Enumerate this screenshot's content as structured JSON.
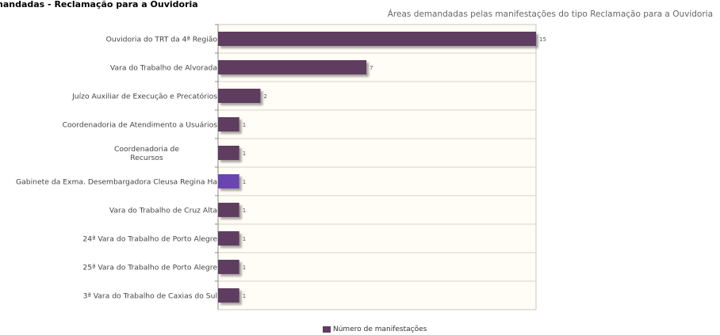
{
  "page": {
    "heading": "nandadas - Reclamação para a Ouvidoria"
  },
  "chart_data": {
    "type": "bar",
    "orientation": "horizontal",
    "title": "Áreas demandadas pelas manifestações do tipo Reclamação para a Ouvidoria",
    "categories": [
      "Ouvidoria do TRT da 4ª Região",
      "Vara do Trabalho de Alvorada",
      "Juízo Auxiliar de Execução e Precatórios",
      "Coordenadoria de Atendimento a Usuários",
      "Coordenadoria de Recursos",
      "Gabinete da Exma. Desembargadora Cleusa Regina Ha",
      "Vara do Trabalho de Cruz Alta",
      "24ª Vara do Trabalho de Porto Alegre",
      "25ª Vara do Trabalho de Porto Alegre",
      "3ª Vara do Trabalho de Caxias do Sul"
    ],
    "category_lines": [
      [
        "Ouvidoria do TRT da 4ª Região"
      ],
      [
        "Vara do Trabalho de Alvorada"
      ],
      [
        "Juízo Auxiliar de Execução e Precatórios"
      ],
      [
        "Coordenadoria de Atendimento a Usuários"
      ],
      [
        "Coordenadoria de",
        "Recursos"
      ],
      [
        "Gabinete da Exma. Desembargadora Cleusa Regina Ha"
      ],
      [
        "Vara do Trabalho de Cruz Alta"
      ],
      [
        "24ª Vara do Trabalho de Porto Alegre"
      ],
      [
        "25ª Vara do Trabalho de Porto Alegre"
      ],
      [
        "3ª Vara do Trabalho de Caxias do Sul"
      ]
    ],
    "series": [
      {
        "name": "Número de manifestações",
        "values": [
          15,
          7,
          2,
          1,
          1,
          1,
          1,
          1,
          1,
          1
        ]
      }
    ],
    "xlim": [
      0,
      15
    ],
    "highlight_index": 5,
    "grid": true,
    "legend_position": "bottom-center",
    "colors": {
      "bar": "#5e3d60",
      "highlight": "#6a45b0",
      "plot_background": "#fffdf5",
      "grid": "#d4d4cc"
    }
  }
}
